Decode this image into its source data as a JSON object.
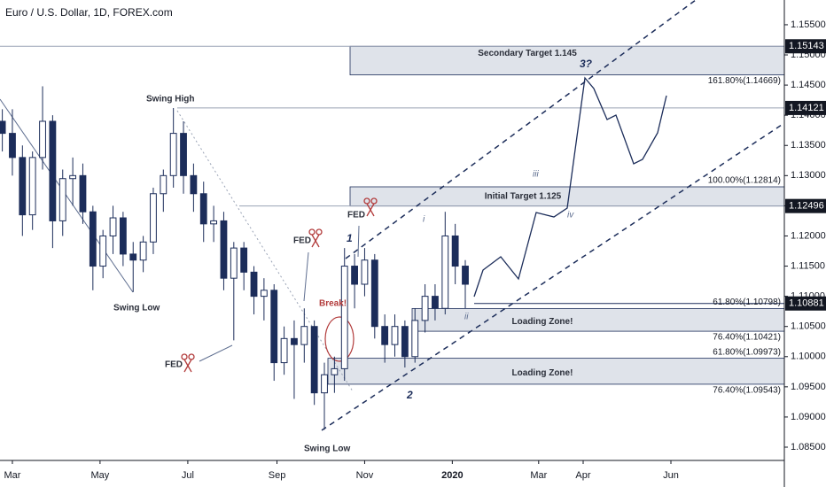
{
  "chart_data": {
    "type": "candlestick",
    "title": "Euro / U.S. Dollar, 1D, FOREX.com",
    "x": [
      -1,
      0,
      1,
      2,
      3,
      4,
      5,
      6,
      7,
      8,
      9,
      10,
      11,
      12,
      13,
      14,
      15,
      16,
      17,
      18,
      19,
      20,
      21,
      22,
      23,
      24,
      25,
      26,
      27,
      28,
      29,
      30,
      31,
      32,
      33,
      34,
      35,
      36,
      37,
      38,
      39,
      40,
      41,
      42,
      43,
      44,
      45
    ],
    "open": [
      1.139,
      1.137,
      1.133,
      1.1235,
      1.133,
      1.139,
      1.1225,
      1.1295,
      1.13,
      1.124,
      1.115,
      1.12,
      1.123,
      1.117,
      1.116,
      1.119,
      1.127,
      1.13,
      1.137,
      1.13,
      1.127,
      1.122,
      1.1225,
      1.113,
      1.118,
      1.114,
      1.11,
      1.111,
      1.099,
      1.103,
      1.102,
      1.105,
      1.094,
      1.097,
      1.098,
      1.115,
      1.112,
      1.116,
      1.105,
      1.102,
      1.105,
      1.1,
      1.106,
      1.11,
      1.108,
      1.12,
      1.115
    ],
    "high": [
      1.141,
      1.141,
      1.135,
      1.134,
      1.1448,
      1.14,
      1.131,
      1.133,
      1.132,
      1.125,
      1.121,
      1.125,
      1.124,
      1.119,
      1.12,
      1.128,
      1.131,
      1.1412,
      1.139,
      1.132,
      1.129,
      1.125,
      1.124,
      1.119,
      1.119,
      1.115,
      1.113,
      1.112,
      1.105,
      1.106,
      1.108,
      1.106,
      1.099,
      1.1,
      1.118,
      1.117,
      1.118,
      1.117,
      1.107,
      1.107,
      1.106,
      1.108,
      1.112,
      1.112,
      1.124,
      1.122,
      1.116
    ],
    "low": [
      1.134,
      1.13,
      1.12,
      1.121,
      1.131,
      1.118,
      1.12,
      1.125,
      1.122,
      1.111,
      1.113,
      1.117,
      1.115,
      1.1107,
      1.114,
      1.117,
      1.124,
      1.128,
      1.127,
      1.124,
      1.119,
      1.119,
      1.111,
      1.1027,
      1.111,
      1.107,
      1.106,
      1.096,
      1.097,
      1.093,
      1.099,
      1.092,
      1.0879,
      1.094,
      1.096,
      1.108,
      1.11,
      1.103,
      1.099,
      1.1,
      1.0982,
      1.099,
      1.104,
      1.106,
      1.107,
      1.112,
      1.108
    ],
    "close": [
      1.137,
      1.133,
      1.1235,
      1.133,
      1.139,
      1.1225,
      1.1295,
      1.13,
      1.124,
      1.115,
      1.12,
      1.123,
      1.117,
      1.116,
      1.119,
      1.127,
      1.13,
      1.137,
      1.13,
      1.127,
      1.122,
      1.1225,
      1.113,
      1.118,
      1.114,
      1.11,
      1.111,
      1.099,
      1.103,
      1.102,
      1.105,
      1.094,
      1.097,
      1.098,
      1.115,
      1.112,
      1.116,
      1.105,
      1.102,
      1.105,
      1.1,
      1.106,
      1.11,
      1.108,
      1.12,
      1.115,
      1.112
    ],
    "up_color": "#ffffff",
    "down_color": "#1c2d5a",
    "edge_color": "#1c2d5a",
    "xlim": [
      -1.23,
      76.7
    ],
    "xticks": [
      {
        "value": 0,
        "label": "Mar"
      },
      {
        "value": 8.71,
        "label": "May"
      },
      {
        "value": 17.43,
        "label": "Jul"
      },
      {
        "value": 26.29,
        "label": "Sep"
      },
      {
        "value": 35.0,
        "label": "Nov"
      },
      {
        "value": 43.71,
        "label": "2020"
      },
      {
        "value": 52.29,
        "label": "Mar"
      },
      {
        "value": 56.71,
        "label": "Apr"
      },
      {
        "value": 65.43,
        "label": "Jun"
      }
    ],
    "ylim": [
      1.0828,
      1.1591
    ],
    "yticks": [
      {
        "value": 1.085,
        "label": "1.08500"
      },
      {
        "value": 1.09,
        "label": "1.09000"
      },
      {
        "value": 1.095,
        "label": "1.09500"
      },
      {
        "value": 1.1,
        "label": "1.10000"
      },
      {
        "value": 1.105,
        "label": "1.10500"
      },
      {
        "value": 1.11,
        "label": "1.11000"
      },
      {
        "value": 1.115,
        "label": "1.11500"
      },
      {
        "value": 1.12,
        "label": "1.12000"
      },
      {
        "value": 1.125,
        "label": "1.12500"
      },
      {
        "value": 1.13,
        "label": "1.13000"
      },
      {
        "value": 1.135,
        "label": "1.13500"
      },
      {
        "value": 1.14,
        "label": "1.14000"
      },
      {
        "value": 1.145,
        "label": "1.14500"
      },
      {
        "value": 1.15,
        "label": "1.15000"
      },
      {
        "value": 1.155,
        "label": "1.15500"
      }
    ],
    "price_markers": [
      1.15143,
      1.14121,
      1.12496,
      1.10881
    ],
    "levels": [
      {
        "value": 1.14669,
        "label": "161.80%(1.14669)"
      },
      {
        "value": 1.12814,
        "label": "100.00%(1.12814)"
      },
      {
        "value": 1.10798,
        "label": "61.80%(1.10798)"
      },
      {
        "value": 1.10421,
        "label": "76.40%(1.10421)"
      },
      {
        "value": 1.09973,
        "label": "61.80%(1.09973)"
      },
      {
        "value": 1.09543,
        "label": "76.40%(1.09543)"
      }
    ],
    "zone_labels": [
      "Secondary Target 1.145",
      "Initial Target 1.125",
      "Loading Zone!",
      "Loading Zone!"
    ],
    "annotations": {
      "swing_high": "Swing High",
      "swing_low_1": "Swing Low",
      "swing_low_2": "Swing Low",
      "fed_1": "FED",
      "fed_2": "FED",
      "fed_3": "FED",
      "break": "Break!",
      "wave_1": "1",
      "wave_2": "2",
      "wave_3": "3?",
      "wave_i": "i",
      "wave_ii": "ii",
      "wave_iii": "iii",
      "wave_iv": "iv"
    }
  }
}
